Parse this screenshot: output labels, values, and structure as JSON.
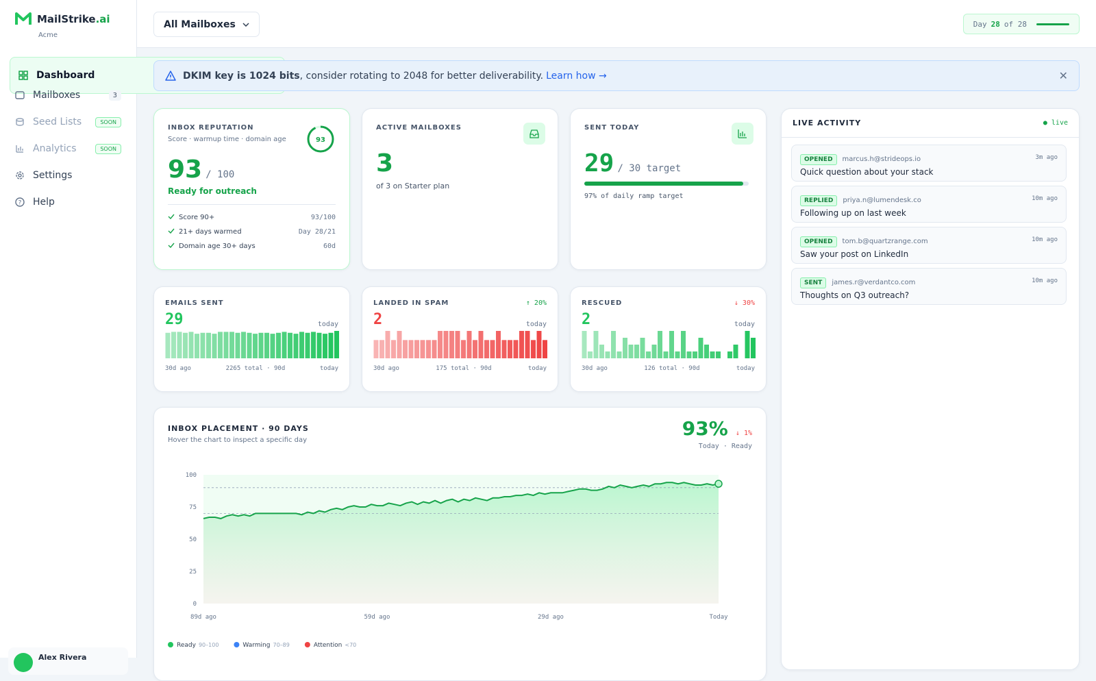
{
  "sidebar": {
    "brand": "MailStrike",
    "brand_suffix": ".ai",
    "org": "Acme",
    "nav": [
      {
        "label": "Dashboard"
      },
      {
        "label": "Mailboxes",
        "badge": "3"
      },
      {
        "label": "Seed Lists",
        "badge": "SOON"
      },
      {
        "label": "Analytics",
        "badge": "SOON"
      },
      {
        "label": "Settings"
      },
      {
        "label": "Help"
      }
    ],
    "user": "Alex Rivera"
  },
  "topbar": {
    "mailbox_select": "All Mailboxes",
    "day_label": "Day",
    "day": "28",
    "day_of": "of 28"
  },
  "alert": {
    "bold": "DKIM key is 1024 bits",
    "text": ", consider rotating to 2048 for better deliverability.",
    "link": "Learn how →"
  },
  "reputation": {
    "title": "INBOX REPUTATION",
    "subtitle": "Score · warmup time · domain age",
    "score": 93,
    "score_out_of": {
      "value": 100,
      "label": "/ 100"
    },
    "status": "Ready for outreach",
    "checks": [
      {
        "label": "Score 90+",
        "value": "93/100"
      },
      {
        "label": "21+ days warmed",
        "value": "Day 28/21"
      },
      {
        "label": "Domain age 30+ days",
        "value": "60d"
      }
    ]
  },
  "active_mailboxes": {
    "title": "ACTIVE MAILBOXES",
    "value": "3",
    "note": "of 3 on Starter plan"
  },
  "sent_today": {
    "title": "SENT TODAY",
    "sent": 29,
    "target": {
      "value": 30,
      "label": "/ 30 target"
    },
    "note": "97% of daily ramp target"
  },
  "mini_cards": [
    {
      "title": "EMAILS SENT",
      "value": "29",
      "period": "today",
      "start": "30d ago",
      "total": "2265 total · 90d",
      "end": "today",
      "color": "#22c55e",
      "sparkline": {
        "type": "bar",
        "values": [
          27,
          28,
          28,
          27,
          28,
          26,
          27,
          27,
          26,
          28,
          28,
          28,
          27,
          28,
          27,
          26,
          27,
          27,
          26,
          27,
          28,
          27,
          26,
          28,
          27,
          28,
          27,
          26,
          27,
          29
        ]
      }
    },
    {
      "title": "LANDED IN SPAM",
      "change": "↑ 20%",
      "change_color": "#16a34a",
      "value": "2",
      "period": "today",
      "start": "30d ago",
      "total": "175 total · 90d",
      "end": "today",
      "color": "#ef4444",
      "sparkline": {
        "type": "bar",
        "values": [
          2,
          2,
          3,
          2,
          3,
          2,
          2,
          2,
          2,
          2,
          2,
          3,
          3,
          3,
          3,
          2,
          3,
          2,
          3,
          2,
          2,
          3,
          2,
          2,
          2,
          3,
          3,
          2,
          3,
          2
        ]
      }
    },
    {
      "title": "RESCUED",
      "change": "↓ 30%",
      "change_color": "#ef4444",
      "value": "2",
      "period": "today",
      "start": "30d ago",
      "total": "126 total · 90d",
      "end": "today",
      "color": "#22c55e",
      "sparkline": {
        "type": "bar",
        "values": [
          4,
          1,
          4,
          2,
          1,
          4,
          1,
          3,
          2,
          2,
          3,
          1,
          2,
          4,
          1,
          4,
          1,
          4,
          1,
          1,
          3,
          2,
          1,
          1,
          0,
          1,
          2,
          0,
          4,
          3
        ]
      }
    }
  ],
  "placement": {
    "title": "INBOX PLACEMENT · 90 DAYS",
    "subtitle": "Hover the chart to inspect a specific day",
    "current": "93%",
    "change": "↓ 1%",
    "today": "Today",
    "status": "Ready",
    "chart_data": {
      "type": "line",
      "color": "#16a34a",
      "values": [
        66,
        67,
        67,
        66,
        68,
        69,
        68,
        69,
        68,
        70,
        70,
        70,
        70,
        70,
        70,
        70,
        70,
        69,
        71,
        70,
        72,
        71,
        73,
        74,
        73,
        75,
        76,
        75,
        75,
        77,
        76,
        76,
        78,
        77,
        76,
        78,
        79,
        77,
        79,
        78,
        80,
        78,
        80,
        81,
        79,
        81,
        80,
        82,
        81,
        80,
        82,
        82,
        83,
        83,
        84,
        84,
        85,
        84,
        86,
        85,
        86,
        86,
        86,
        87,
        88,
        89,
        89,
        88,
        88,
        89,
        91,
        90,
        92,
        91,
        90,
        91,
        92,
        91,
        93,
        93,
        94,
        94,
        93,
        94,
        93,
        92,
        92,
        93,
        92,
        93
      ],
      "xlim": [
        0,
        89
      ],
      "xticks": [
        {
          "value": 0,
          "label": "89d ago"
        },
        {
          "value": 30,
          "label": "59d ago"
        },
        {
          "value": 60,
          "label": "29d ago"
        },
        {
          "value": 89,
          "label": "Today"
        }
      ],
      "ylim": [
        0,
        100
      ],
      "yticks": [
        0,
        25,
        50,
        75,
        100
      ],
      "ref_lines": [
        90,
        70
      ],
      "legend": [
        {
          "label": "Ready",
          "range": "90–100",
          "color": "#22c55e"
        },
        {
          "label": "Warming",
          "range": "70–89",
          "color": "#3b82f6"
        },
        {
          "label": "Attention",
          "range": "<70",
          "color": "#ef4444"
        }
      ]
    }
  },
  "activity": {
    "title": "LIVE ACTIVITY",
    "status": "live",
    "items": [
      {
        "tag": "OPENED",
        "from": "marcus.h@strideops.io",
        "time": "3m ago",
        "subject": "Quick question about your stack"
      },
      {
        "tag": "REPLIED",
        "from": "priya.n@lumendesk.co",
        "time": "10m ago",
        "subject": "Following up on last week"
      },
      {
        "tag": "OPENED",
        "from": "tom.b@quartzrange.com",
        "time": "10m ago",
        "subject": "Saw your post on LinkedIn"
      },
      {
        "tag": "SENT",
        "from": "james.r@verdantco.com",
        "time": "10m ago",
        "subject": "Thoughts on Q3 outreach?"
      }
    ]
  }
}
